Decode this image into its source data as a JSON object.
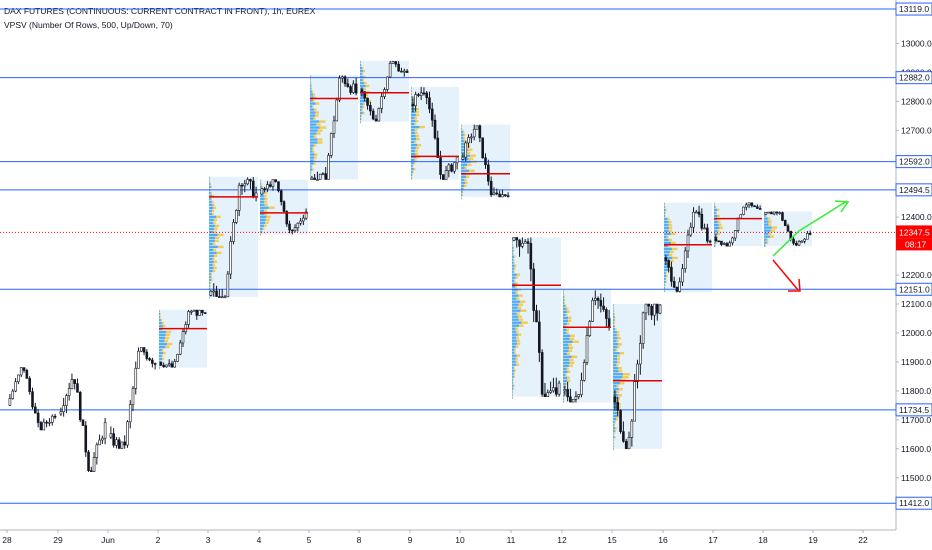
{
  "header": {
    "title": "DAX FUTURES (CONTINUOUS: CURRENT CONTRACT IN FRONT), 1h, EUREX",
    "indicator": "VPSV (Number Of Rows, 500, Up/Down, 70)"
  },
  "colors": {
    "level_line": "#2962ff",
    "current_price": "#ff0000",
    "candle": "#131722",
    "poc": "#e00000",
    "profile_bg": "#cfe8f7",
    "profile_up": "#2196f3",
    "profile_down": "#f9c12a",
    "arrow_up": "#33ee33",
    "arrow_down": "#ff0000",
    "axis_text": "#131722"
  },
  "chart_data": {
    "type": "candlestick",
    "title": "DAX FUTURES (CONTINUOUS: CURRENT CONTRACT IN FRONT), 1h, EUREX",
    "y_range": [
      11390,
      13140
    ],
    "y_ticks": [
      11500,
      11600,
      11700,
      11800,
      11900,
      12000,
      12100,
      12200,
      12300,
      12400,
      12500,
      12600,
      12700,
      12800,
      12900,
      13000
    ],
    "y_tick_labels": [
      "11500.0",
      "11600.0",
      "11700.0",
      "11800.0",
      "11900.0",
      "12000.0",
      "12100.0",
      "12200.0",
      "12300.0",
      "12400.0",
      "12500.0",
      "12600.0",
      "12700.0",
      "12800.0",
      "12900.0",
      "13000.0"
    ],
    "x_labels": [
      "28",
      "29",
      "Jun",
      "2",
      "3",
      "4",
      "5",
      "8",
      "9",
      "10",
      "11",
      "12",
      "15",
      "16",
      "17",
      "18",
      "19",
      "22"
    ],
    "x_label_dayindex": [
      0,
      1,
      2,
      3,
      4,
      5,
      6,
      7,
      8,
      9,
      10,
      11,
      12,
      13,
      14,
      15,
      16,
      17
    ],
    "horizontal_levels": [
      {
        "value": 13119.0,
        "label": "13119.0"
      },
      {
        "value": 12882.0,
        "label": "12882.0"
      },
      {
        "value": 12592.0,
        "label": "12592.0"
      },
      {
        "value": 12494.5,
        "label": "12494.5"
      },
      {
        "value": 12151.0,
        "label": "12151.0"
      },
      {
        "value": 11734.5,
        "label": "11734.5"
      },
      {
        "value": 11412.0,
        "label": "11412.0"
      }
    ],
    "current_price": {
      "value": 12347.5,
      "label": "12347.5",
      "countdown": "08:17"
    },
    "daily_ohlc": [
      {
        "day": "28",
        "o": 11750,
        "h": 11890,
        "l": 11665,
        "c": 11720
      },
      {
        "day": "29",
        "o": 11720,
        "h": 11860,
        "l": 11520,
        "c": 11680
      },
      {
        "day": "Jun",
        "o": 11640,
        "h": 11950,
        "l": 11600,
        "c": 11900
      },
      {
        "day": "2",
        "o": 11900,
        "h": 12080,
        "l": 11880,
        "c": 12060
      },
      {
        "day": "3",
        "o": 12130,
        "h": 12540,
        "l": 12125,
        "c": 12480
      },
      {
        "day": "4",
        "o": 12480,
        "h": 12530,
        "l": 12340,
        "c": 12420
      },
      {
        "day": "5",
        "o": 12530,
        "h": 12890,
        "l": 12530,
        "c": 12830
      },
      {
        "day": "8",
        "o": 12840,
        "h": 12940,
        "l": 12730,
        "c": 12890
      },
      {
        "day": "9",
        "o": 12790,
        "h": 12850,
        "l": 12530,
        "c": 12600
      },
      {
        "day": "10",
        "o": 12600,
        "h": 12720,
        "l": 12470,
        "c": 12480
      },
      {
        "day": "11",
        "o": 12320,
        "h": 12330,
        "l": 11780,
        "c": 11800
      },
      {
        "day": "12",
        "o": 11800,
        "h": 12150,
        "l": 11760,
        "c": 12020
      },
      {
        "day": "15",
        "o": 11780,
        "h": 12100,
        "l": 11600,
        "c": 12080
      },
      {
        "day": "16",
        "o": 12260,
        "h": 12450,
        "l": 12140,
        "c": 12300
      },
      {
        "day": "17",
        "o": 12330,
        "h": 12450,
        "l": 12300,
        "c": 12420
      },
      {
        "day": "18",
        "o": 12410,
        "h": 12420,
        "l": 12300,
        "c": 12347.5
      }
    ],
    "poc_levels": [
      {
        "day": "2",
        "value": 12015
      },
      {
        "day": "3",
        "value": 12470
      },
      {
        "day": "4",
        "value": 12415
      },
      {
        "day": "5",
        "value": 12810
      },
      {
        "day": "8",
        "value": 12830
      },
      {
        "day": "9",
        "value": 12610
      },
      {
        "day": "10",
        "value": 12550
      },
      {
        "day": "11",
        "value": 12165
      },
      {
        "day": "12",
        "value": 12020
      },
      {
        "day": "15",
        "value": 11835
      },
      {
        "day": "16",
        "value": 12305
      },
      {
        "day": "17",
        "value": 12395
      }
    ],
    "grid": false
  }
}
